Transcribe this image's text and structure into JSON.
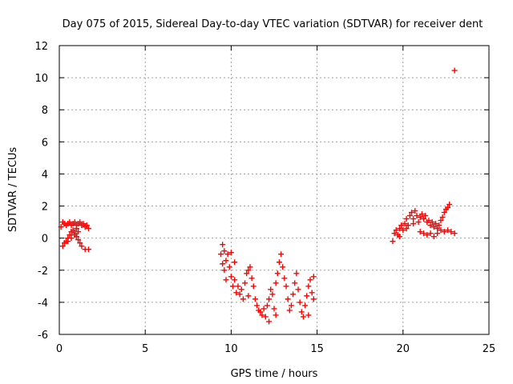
{
  "chart_data": {
    "type": "scatter",
    "title": "Day 075 of 2015, Sidereal Day-to-day VTEC variation (SDTVAR) for receiver dent",
    "xlabel": "GPS time / hours",
    "ylabel": "SDTVAR / TECUs",
    "xlim": [
      0,
      25
    ],
    "ylim": [
      -6,
      12
    ],
    "xticks": [
      0,
      5,
      10,
      15,
      20,
      25
    ],
    "yticks": [
      -6,
      -4,
      -2,
      0,
      2,
      4,
      6,
      8,
      10,
      12
    ],
    "grid": true,
    "marker": "+",
    "color": "#ff0000",
    "series": [
      {
        "name": "dent",
        "points": [
          [
            0.1,
            0.7
          ],
          [
            0.2,
            1.0
          ],
          [
            0.3,
            0.9
          ],
          [
            0.4,
            0.8
          ],
          [
            0.5,
            0.9
          ],
          [
            0.6,
            1.0
          ],
          [
            0.7,
            0.8
          ],
          [
            0.8,
            0.9
          ],
          [
            0.9,
            1.0
          ],
          [
            1.0,
            0.8
          ],
          [
            1.1,
            0.9
          ],
          [
            1.2,
            1.0
          ],
          [
            1.3,
            0.8
          ],
          [
            1.4,
            0.9
          ],
          [
            1.5,
            0.7
          ],
          [
            1.6,
            0.8
          ],
          [
            1.7,
            0.6
          ],
          [
            0.2,
            -0.5
          ],
          [
            0.3,
            -0.3
          ],
          [
            0.4,
            -0.2
          ],
          [
            0.5,
            0.0
          ],
          [
            0.6,
            0.2
          ],
          [
            0.7,
            0.4
          ],
          [
            0.8,
            0.5
          ],
          [
            0.9,
            0.3
          ],
          [
            1.0,
            0.1
          ],
          [
            1.1,
            -0.1
          ],
          [
            1.2,
            -0.3
          ],
          [
            1.3,
            -0.5
          ],
          [
            1.5,
            -0.7
          ],
          [
            1.7,
            -0.7
          ],
          [
            0.5,
            -0.2
          ],
          [
            0.7,
            0.0
          ],
          [
            0.9,
            0.2
          ],
          [
            1.1,
            0.4
          ],
          [
            1.0,
            0.6
          ],
          [
            9.4,
            -1.0
          ],
          [
            9.5,
            -0.4
          ],
          [
            9.5,
            -1.6
          ],
          [
            9.6,
            -2.0
          ],
          [
            9.6,
            -0.8
          ],
          [
            9.7,
            -2.6
          ],
          [
            9.7,
            -1.4
          ],
          [
            9.8,
            -1.0
          ],
          [
            9.9,
            -1.8
          ],
          [
            10.0,
            -2.4
          ],
          [
            10.0,
            -0.9
          ],
          [
            10.1,
            -3.0
          ],
          [
            10.2,
            -2.6
          ],
          [
            10.2,
            -1.5
          ],
          [
            10.3,
            -3.4
          ],
          [
            10.4,
            -3.0
          ],
          [
            10.5,
            -3.5
          ],
          [
            10.6,
            -3.2
          ],
          [
            10.7,
            -3.8
          ],
          [
            10.8,
            -2.8
          ],
          [
            10.9,
            -2.2
          ],
          [
            11.0,
            -2.0
          ],
          [
            11.0,
            -3.6
          ],
          [
            11.1,
            -1.8
          ],
          [
            11.2,
            -2.5
          ],
          [
            11.3,
            -3.0
          ],
          [
            11.4,
            -3.8
          ],
          [
            11.5,
            -4.2
          ],
          [
            11.6,
            -4.5
          ],
          [
            11.7,
            -4.6
          ],
          [
            11.8,
            -4.8
          ],
          [
            11.9,
            -4.4
          ],
          [
            12.0,
            -4.9
          ],
          [
            12.1,
            -4.2
          ],
          [
            12.2,
            -5.2
          ],
          [
            12.2,
            -3.8
          ],
          [
            12.3,
            -3.2
          ],
          [
            12.4,
            -3.5
          ],
          [
            12.5,
            -4.4
          ],
          [
            12.6,
            -2.8
          ],
          [
            12.6,
            -4.8
          ],
          [
            12.7,
            -2.2
          ],
          [
            12.8,
            -1.5
          ],
          [
            12.9,
            -1.0
          ],
          [
            13.0,
            -1.8
          ],
          [
            13.1,
            -2.5
          ],
          [
            13.2,
            -3.0
          ],
          [
            13.3,
            -3.8
          ],
          [
            13.4,
            -4.5
          ],
          [
            13.5,
            -4.2
          ],
          [
            13.6,
            -3.5
          ],
          [
            13.7,
            -2.8
          ],
          [
            13.8,
            -2.2
          ],
          [
            13.9,
            -3.2
          ],
          [
            14.0,
            -4.0
          ],
          [
            14.1,
            -4.6
          ],
          [
            14.2,
            -4.9
          ],
          [
            14.3,
            -4.2
          ],
          [
            14.4,
            -3.6
          ],
          [
            14.5,
            -3.0
          ],
          [
            14.5,
            -4.8
          ],
          [
            14.6,
            -2.6
          ],
          [
            14.7,
            -3.4
          ],
          [
            14.8,
            -3.8
          ],
          [
            14.8,
            -2.4
          ],
          [
            19.4,
            -0.2
          ],
          [
            19.5,
            0.3
          ],
          [
            19.6,
            0.5
          ],
          [
            19.7,
            0.2
          ],
          [
            19.8,
            0.6
          ],
          [
            19.9,
            0.8
          ],
          [
            20.0,
            0.5
          ],
          [
            20.1,
            0.9
          ],
          [
            20.2,
            1.2
          ],
          [
            20.3,
            0.8
          ],
          [
            20.4,
            1.4
          ],
          [
            20.5,
            1.6
          ],
          [
            20.6,
            1.2
          ],
          [
            20.7,
            1.7
          ],
          [
            20.8,
            1.4
          ],
          [
            20.9,
            1.0
          ],
          [
            21.0,
            1.3
          ],
          [
            21.1,
            1.5
          ],
          [
            21.2,
            1.2
          ],
          [
            21.3,
            1.4
          ],
          [
            21.4,
            1.0
          ],
          [
            21.5,
            1.1
          ],
          [
            21.6,
            0.8
          ],
          [
            21.7,
            1.0
          ],
          [
            21.8,
            0.7
          ],
          [
            21.9,
            0.9
          ],
          [
            22.0,
            0.6
          ],
          [
            22.1,
            0.8
          ],
          [
            22.2,
            1.1
          ],
          [
            22.3,
            1.3
          ],
          [
            22.4,
            1.6
          ],
          [
            22.5,
            1.8
          ],
          [
            22.6,
            1.9
          ],
          [
            22.7,
            2.1
          ],
          [
            21.0,
            0.4
          ],
          [
            21.2,
            0.3
          ],
          [
            21.4,
            0.2
          ],
          [
            21.6,
            0.3
          ],
          [
            21.8,
            0.1
          ],
          [
            22.0,
            0.3
          ],
          [
            22.2,
            0.5
          ],
          [
            22.4,
            0.4
          ],
          [
            22.6,
            0.5
          ],
          [
            22.8,
            0.4
          ],
          [
            23.0,
            0.3
          ],
          [
            20.2,
            0.6
          ],
          [
            20.6,
            0.9
          ],
          [
            19.8,
            0.1
          ],
          [
            23.0,
            10.45
          ]
        ]
      }
    ]
  }
}
